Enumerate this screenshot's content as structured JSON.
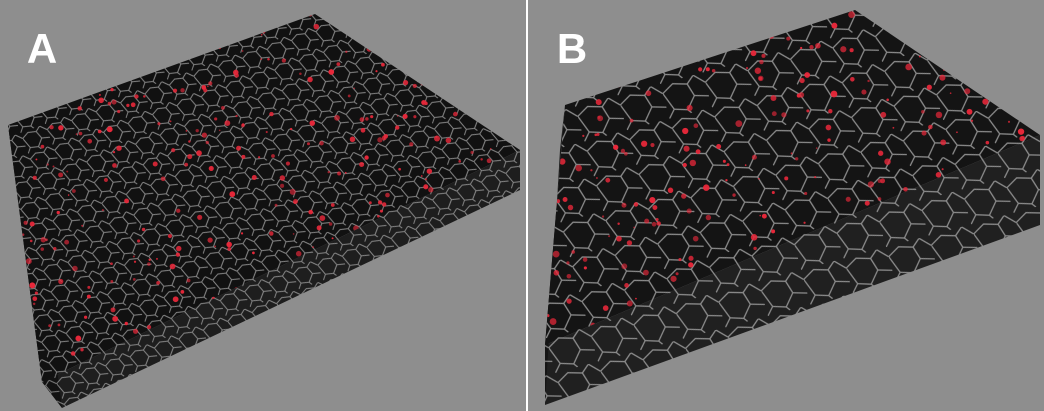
{
  "panels": [
    {
      "label": "A"
    },
    {
      "label": "B"
    }
  ]
}
